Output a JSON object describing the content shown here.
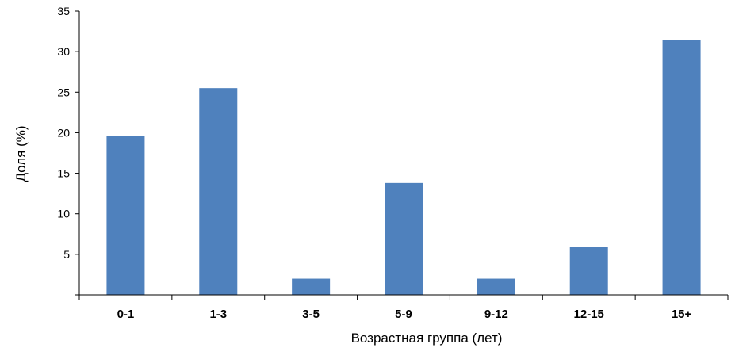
{
  "chart_data": {
    "type": "bar",
    "categories": [
      "0-1",
      "1-3",
      "3-5",
      "5-9",
      "9-12",
      "12-15",
      "15+"
    ],
    "values": [
      19.6,
      25.5,
      2.0,
      13.8,
      2.0,
      5.9,
      31.4
    ],
    "ylabel": "Доля (%)",
    "xlabel": "Возрастная группа (лет)",
    "ylim": [
      0,
      35
    ],
    "yticks": [
      5,
      10,
      15,
      20,
      25,
      30,
      35
    ],
    "grid": false,
    "legend": "none",
    "colors": {
      "bar": "#4f81bd",
      "axis": "#000000"
    }
  }
}
